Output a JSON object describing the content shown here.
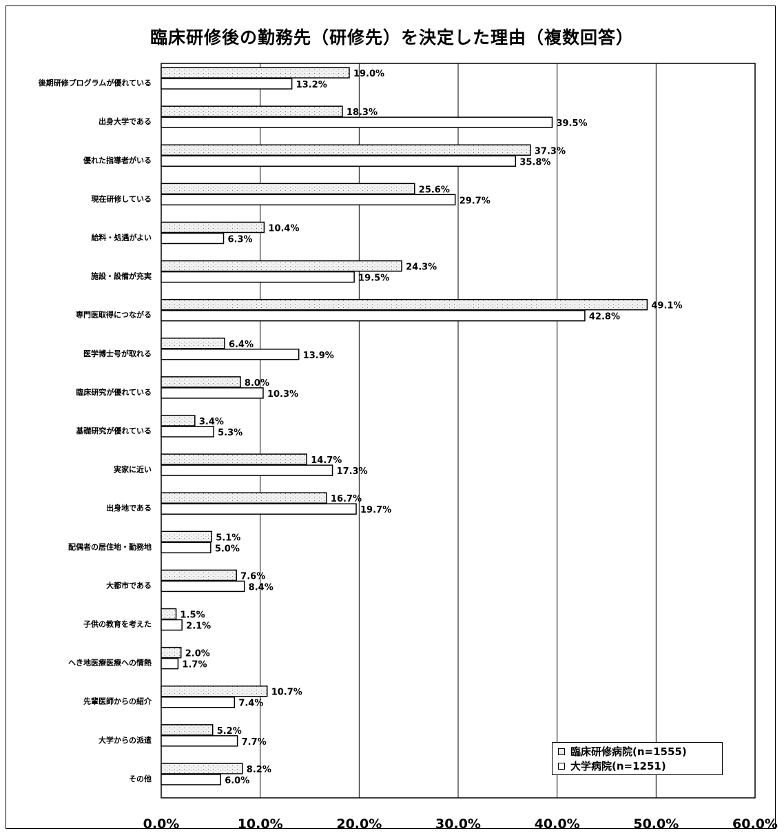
{
  "chart_data": {
    "type": "bar",
    "orientation": "horizontal",
    "title": "臨床研修後の勤務先（研修先）を決定した理由（複数回答）",
    "xlabel": "",
    "ylabel": "",
    "xlim": [
      0,
      60
    ],
    "x_ticks": [
      "0.0%",
      "10.0%",
      "20.0%",
      "30.0%",
      "40.0%",
      "50.0%",
      "60.0%"
    ],
    "grid": true,
    "legend_position": "bottom-right",
    "categories": [
      "後期研修プログラムが優れている",
      "出身大学である",
      "優れた指導者がいる",
      "現在研修している",
      "給料・処遇がよい",
      "施設・設備が充実",
      "専門医取得につながる",
      "医学博士号が取れる",
      "臨床研究が優れている",
      "基礎研究が優れている",
      "実家に近い",
      "出身地である",
      "配偶者の居住地・勤務地",
      "大都市である",
      "子供の教育を考えた",
      "へき地医療医療への情熱",
      "先輩医師からの紹介",
      "大学からの派遣",
      "その他"
    ],
    "series": [
      {
        "name": "臨床研修病院(n=1555)",
        "values": [
          19.0,
          18.3,
          37.3,
          25.6,
          10.4,
          24.3,
          49.1,
          6.4,
          8.0,
          3.4,
          14.7,
          16.7,
          5.1,
          7.6,
          1.5,
          2.0,
          10.7,
          5.2,
          8.2
        ],
        "labels": [
          "19.0%",
          "18.3%",
          "37.3%",
          "25.6%",
          "10.4%",
          "24.3%",
          "49.1%",
          "6.4%",
          "8.0%",
          "3.4%",
          "14.7%",
          "16.7%",
          "5.1%",
          "7.6%",
          "1.5%",
          "2.0%",
          "10.7%",
          "5.2%",
          "8.2%"
        ]
      },
      {
        "name": "大学病院(n=1251)",
        "values": [
          13.2,
          39.5,
          35.8,
          29.7,
          6.3,
          19.5,
          42.8,
          13.9,
          10.3,
          5.3,
          17.3,
          19.7,
          5.0,
          8.4,
          2.1,
          1.7,
          7.4,
          7.7,
          6.0
        ],
        "labels": [
          "13.2%",
          "39.5%",
          "35.8%",
          "29.7%",
          "6.3%",
          "19.5%",
          "42.8%",
          "13.9%",
          "10.3%",
          "5.3%",
          "17.3%",
          "19.7%",
          "5.0%",
          "8.4%",
          "2.1%",
          "1.7%",
          "7.4%",
          "7.7%",
          "6.0%"
        ]
      }
    ]
  },
  "colors": {
    "series1_fill": "#ececec",
    "series2_fill": "#ffffff",
    "stroke": "#000000"
  }
}
